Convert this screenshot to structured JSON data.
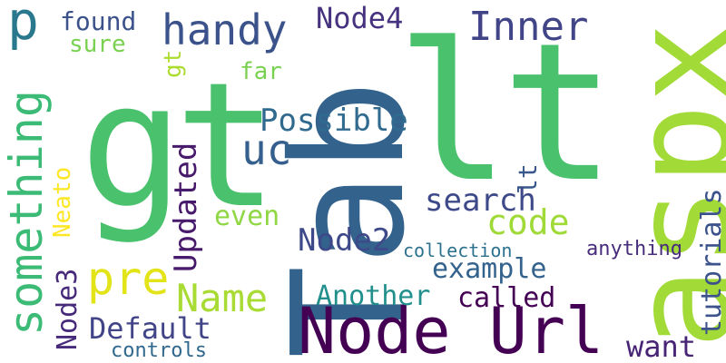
{
  "words": [
    {
      "text": "gt",
      "color": "#4ac16d"
    },
    {
      "text": "lt",
      "color": "#4ac16d"
    },
    {
      "text": "Tab",
      "color": "#33638d"
    },
    {
      "text": "aspx",
      "color": "#a2da37"
    },
    {
      "text": "Node Url",
      "color": "#440154"
    },
    {
      "text": "something",
      "color": "#3bbb75"
    },
    {
      "text": "p",
      "color": "#2a788e"
    },
    {
      "text": "handy",
      "color": "#3b528b"
    },
    {
      "text": "Inner",
      "color": "#414487"
    },
    {
      "text": "Node4",
      "color": "#46327e"
    },
    {
      "text": "found",
      "color": "#3b528b"
    },
    {
      "text": "sure",
      "color": "#7ad151"
    },
    {
      "text": "gt",
      "color": "#addc30"
    },
    {
      "text": "far",
      "color": "#7ad151"
    },
    {
      "text": "Possible",
      "color": "#306a8e"
    },
    {
      "text": "uc",
      "color": "#355f8d"
    },
    {
      "text": "Updated",
      "color": "#481a6c"
    },
    {
      "text": "Neato",
      "color": "#fde725"
    },
    {
      "text": "lt",
      "color": "#38588c"
    },
    {
      "text": "search",
      "color": "#3e4989"
    },
    {
      "text": "code",
      "color": "#a0da39"
    },
    {
      "text": "even",
      "color": "#8fd744"
    },
    {
      "text": "tutorials",
      "color": "#3b528b"
    },
    {
      "text": "Node2",
      "color": "#3e4989"
    },
    {
      "text": "collection",
      "color": "#2c728e"
    },
    {
      "text": "anything",
      "color": "#472d7b"
    },
    {
      "text": "pre",
      "color": "#e2e418"
    },
    {
      "text": "Node3",
      "color": "#472a7a"
    },
    {
      "text": "example",
      "color": "#33638d"
    },
    {
      "text": "Name",
      "color": "#a8db34"
    },
    {
      "text": "Another",
      "color": "#21908d"
    },
    {
      "text": "called",
      "color": "#440154"
    },
    {
      "text": "Default",
      "color": "#414487"
    },
    {
      "text": "want",
      "color": "#482475"
    },
    {
      "text": "controls",
      "color": "#31688e"
    }
  ]
}
